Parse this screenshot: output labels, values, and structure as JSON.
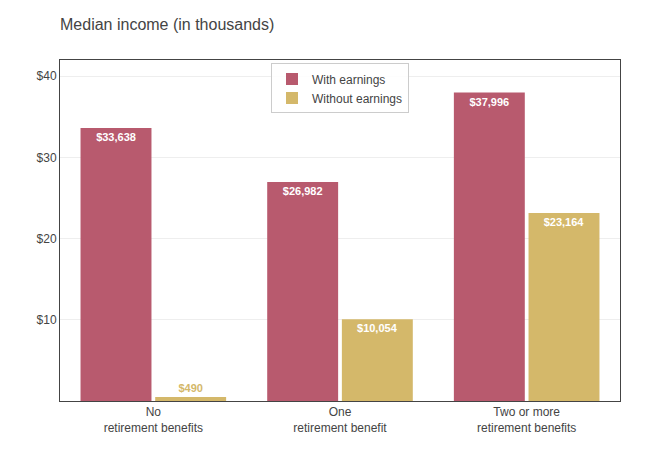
{
  "chart_data": {
    "type": "bar",
    "title": "Median income (in thousands)",
    "categories": [
      "No\nretirement benefits",
      "One\nretirement benefit",
      "Two or more\nretirement benefits"
    ],
    "series": [
      {
        "name": "With earnings",
        "color": "#b85a6e",
        "values": [
          33638,
          26982,
          37996
        ],
        "value_labels": [
          "$33,638",
          "$26,982",
          "$37,996"
        ]
      },
      {
        "name": "Without earnings",
        "color": "#d4b86a",
        "values": [
          490,
          10054,
          23164
        ],
        "value_labels": [
          "$490",
          "$10,054",
          "$23,164"
        ]
      }
    ],
    "ylim": [
      0,
      42000
    ],
    "yticks": [
      {
        "value": 10000,
        "label": "$10"
      },
      {
        "value": 20000,
        "label": "$20"
      },
      {
        "value": 30000,
        "label": "$30"
      },
      {
        "value": 40000,
        "label": "$40"
      }
    ],
    "grid": true,
    "legend": "upper center",
    "data_labels": true
  }
}
